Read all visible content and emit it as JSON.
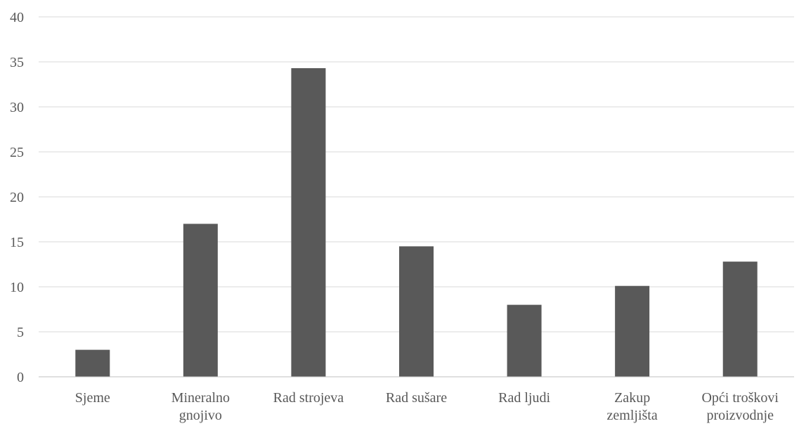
{
  "chart_data": {
    "type": "bar",
    "title": "",
    "xlabel": "",
    "ylabel": "",
    "categories": [
      [
        "Sjeme"
      ],
      [
        "Mineralno",
        "gnojivo"
      ],
      [
        "Rad strojeva"
      ],
      [
        "Rad sušare"
      ],
      [
        "Rad ljudi"
      ],
      [
        "Zakup",
        "zemljišta"
      ],
      [
        "Opći troškovi",
        "proizvodnje"
      ]
    ],
    "values": [
      3.0,
      17.0,
      34.3,
      14.5,
      8.0,
      10.1,
      12.8
    ],
    "ylim": [
      0,
      40
    ],
    "yticks": [
      "0",
      "5",
      "10",
      "15",
      "20",
      "25",
      "30",
      "35",
      "40"
    ],
    "grid": true,
    "legend": "none",
    "colors": {
      "bar": "#595959",
      "grid": "#d9d9d9",
      "axis": "#bfbfbf",
      "text": "#595959"
    }
  }
}
